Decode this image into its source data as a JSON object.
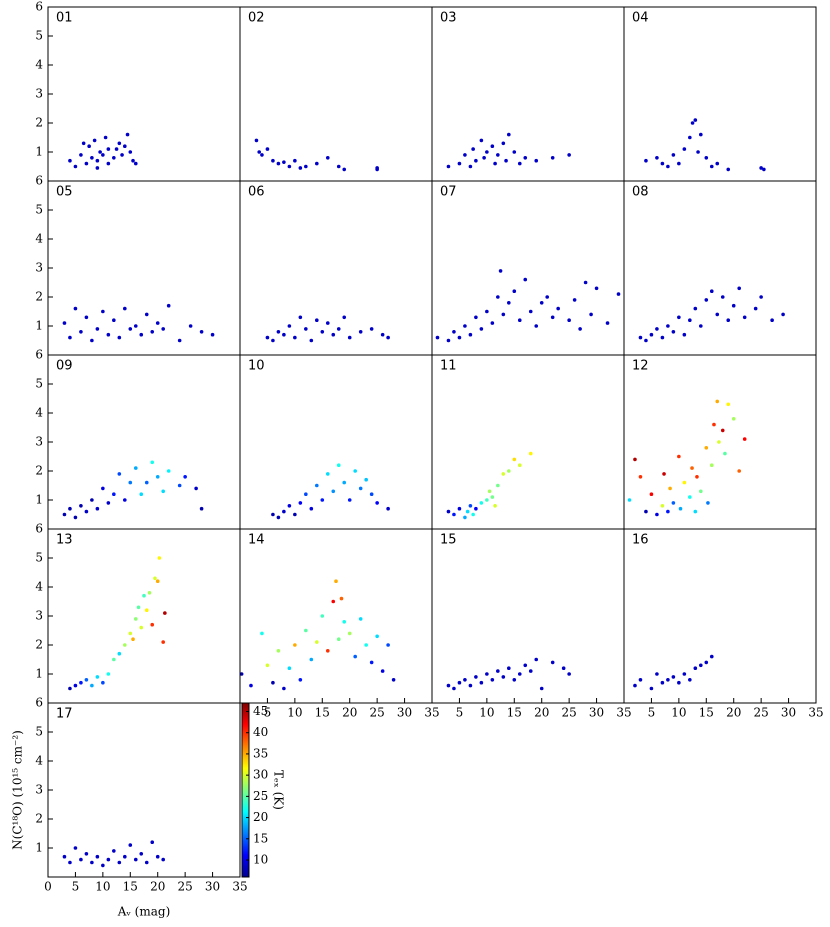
{
  "xlabel": "Aᵥ (mag)",
  "ylabel": "N(C¹⁸O) (10¹⁵ cm⁻²)",
  "colorbar": {
    "label": "Tₑₓ (K)",
    "lim": [
      6,
      47
    ],
    "ticks": [
      10,
      15,
      20,
      25,
      30,
      35,
      40,
      45
    ]
  },
  "chart_data": [
    {
      "type": "scatter",
      "title": "01",
      "xlim": [
        0,
        35
      ],
      "ylim": [
        0,
        6
      ],
      "yticks": [
        1,
        2,
        3,
        4,
        5,
        6
      ],
      "color": "#0000c8",
      "x": [
        4,
        5,
        6,
        7,
        7.5,
        8,
        8.5,
        9,
        9.5,
        10,
        10.5,
        11,
        12,
        12.5,
        13,
        13.5,
        14,
        14.5,
        15,
        15.5,
        16,
        6.5,
        9,
        11
      ],
      "y": [
        0.7,
        0.5,
        0.9,
        0.6,
        1.2,
        0.8,
        1.4,
        0.7,
        1.0,
        0.9,
        1.5,
        0.6,
        0.8,
        1.1,
        1.3,
        0.9,
        1.2,
        1.6,
        1.0,
        0.7,
        0.6,
        1.3,
        0.45,
        1.1
      ]
    },
    {
      "type": "scatter",
      "title": "02",
      "xlim": [
        0,
        35
      ],
      "ylim": [
        0,
        6
      ],
      "color": "#0000c8",
      "x": [
        3,
        3.5,
        4,
        5,
        6,
        7,
        8,
        9,
        10,
        11,
        12,
        14,
        16,
        18,
        19,
        25,
        25
      ],
      "y": [
        1.4,
        1.0,
        0.9,
        1.1,
        0.7,
        0.6,
        0.65,
        0.5,
        0.7,
        0.45,
        0.5,
        0.6,
        0.8,
        0.5,
        0.4,
        0.45,
        0.4
      ]
    },
    {
      "type": "scatter",
      "title": "03",
      "xlim": [
        0,
        35
      ],
      "ylim": [
        0,
        6
      ],
      "color": "#0000c8",
      "x": [
        3,
        5,
        6,
        7,
        7.5,
        8,
        9,
        9.5,
        10,
        11,
        11.5,
        12,
        13,
        13.5,
        14,
        15,
        16,
        17,
        19,
        22,
        25
      ],
      "y": [
        0.5,
        0.6,
        0.9,
        0.5,
        1.1,
        0.7,
        1.4,
        0.8,
        1.0,
        1.2,
        0.6,
        0.9,
        1.3,
        0.7,
        1.6,
        1.0,
        0.6,
        0.8,
        0.7,
        0.8,
        0.9
      ]
    },
    {
      "type": "scatter",
      "title": "04",
      "xlim": [
        0,
        35
      ],
      "ylim": [
        0,
        6
      ],
      "color": "#0000c8",
      "x": [
        4,
        6,
        7,
        8,
        9,
        10,
        11,
        12,
        12.5,
        13,
        13.5,
        14,
        15,
        16,
        17,
        19,
        25,
        25.5
      ],
      "y": [
        0.7,
        0.8,
        0.6,
        0.5,
        0.9,
        0.6,
        1.1,
        1.5,
        2.0,
        2.1,
        1.0,
        1.6,
        0.8,
        0.5,
        0.6,
        0.4,
        0.45,
        0.4
      ]
    },
    {
      "type": "scatter",
      "title": "05",
      "xlim": [
        0,
        35
      ],
      "ylim": [
        0,
        6
      ],
      "yticks": [
        1,
        2,
        3,
        4,
        5,
        6
      ],
      "color": "#0000c8",
      "x": [
        3,
        4,
        5,
        6,
        7,
        8,
        9,
        10,
        11,
        12,
        13,
        14,
        15,
        16,
        17,
        18,
        19,
        20,
        21,
        22,
        24,
        26,
        28,
        30
      ],
      "y": [
        1.1,
        0.6,
        1.6,
        0.8,
        1.3,
        0.5,
        0.9,
        1.5,
        0.7,
        1.2,
        0.6,
        1.6,
        0.9,
        1.0,
        0.7,
        1.4,
        0.8,
        1.1,
        0.9,
        1.7,
        0.5,
        1.0,
        0.8,
        0.7
      ]
    },
    {
      "type": "scatter",
      "title": "06",
      "xlim": [
        0,
        35
      ],
      "ylim": [
        0,
        6
      ],
      "color": "#0000c8",
      "x": [
        5,
        6,
        7,
        8,
        9,
        10,
        11,
        12,
        13,
        14,
        15,
        16,
        17,
        18,
        19,
        20,
        22,
        24,
        26,
        27
      ],
      "y": [
        0.6,
        0.5,
        0.8,
        0.7,
        1.0,
        0.6,
        1.3,
        0.9,
        0.5,
        1.2,
        0.8,
        1.1,
        0.7,
        0.9,
        1.3,
        0.6,
        0.8,
        0.9,
        0.7,
        0.6
      ]
    },
    {
      "type": "scatter",
      "title": "07",
      "xlim": [
        0,
        35
      ],
      "ylim": [
        0,
        6
      ],
      "color": "#0000c8",
      "x": [
        1,
        3,
        4,
        5,
        6,
        7,
        8,
        9,
        10,
        11,
        12,
        12.5,
        13,
        14,
        15,
        16,
        17,
        18,
        19,
        20,
        21,
        22,
        23,
        25,
        26,
        27,
        28,
        29,
        30,
        32,
        34
      ],
      "y": [
        0.6,
        0.5,
        0.8,
        0.6,
        1.0,
        0.7,
        1.3,
        0.9,
        1.5,
        1.1,
        2.0,
        2.9,
        1.4,
        1.8,
        2.2,
        1.2,
        2.6,
        1.5,
        1.0,
        1.8,
        2.0,
        1.3,
        1.6,
        1.2,
        1.9,
        0.9,
        2.5,
        1.4,
        2.3,
        1.1,
        2.1
      ]
    },
    {
      "type": "scatter",
      "title": "08",
      "xlim": [
        0,
        35
      ],
      "ylim": [
        0,
        6
      ],
      "color": "#0000c8",
      "x": [
        3,
        4,
        5,
        6,
        7,
        8,
        9,
        10,
        11,
        12,
        13,
        14,
        15,
        16,
        17,
        18,
        19,
        20,
        21,
        22,
        24,
        25,
        27,
        29
      ],
      "y": [
        0.6,
        0.5,
        0.7,
        0.9,
        0.6,
        1.0,
        0.8,
        1.3,
        0.7,
        1.2,
        1.6,
        1.0,
        1.9,
        2.2,
        1.4,
        2.0,
        1.2,
        1.7,
        2.3,
        1.3,
        1.6,
        2.0,
        1.2,
        1.4
      ]
    },
    {
      "type": "scatter",
      "title": "09",
      "xlim": [
        0,
        35
      ],
      "ylim": [
        0,
        6
      ],
      "yticks": [
        1,
        2,
        3,
        4,
        5,
        6
      ],
      "x": [
        3,
        4,
        5,
        6,
        7,
        8,
        9,
        10,
        11,
        12,
        13,
        14,
        15,
        16,
        17,
        18,
        19,
        20,
        21,
        22,
        24,
        25,
        27,
        28
      ],
      "y": [
        0.5,
        0.7,
        0.4,
        0.8,
        0.6,
        1.0,
        0.7,
        1.4,
        0.9,
        1.2,
        1.9,
        1.0,
        1.6,
        2.1,
        1.2,
        1.6,
        2.3,
        1.8,
        1.3,
        2.0,
        1.5,
        1.8,
        1.4,
        0.7
      ],
      "c": [
        8,
        8,
        8,
        8,
        9,
        8,
        9,
        10,
        9,
        12,
        14,
        10,
        16,
        18,
        20,
        15,
        22,
        18,
        20,
        21,
        14,
        12,
        9,
        8
      ]
    },
    {
      "type": "scatter",
      "title": "10",
      "xlim": [
        0,
        35
      ],
      "ylim": [
        0,
        6
      ],
      "x": [
        6,
        7,
        8,
        9,
        10,
        11,
        12,
        13,
        14,
        15,
        16,
        17,
        18,
        19,
        20,
        21,
        22,
        23,
        24,
        25,
        27
      ],
      "y": [
        0.5,
        0.4,
        0.6,
        0.8,
        0.5,
        0.9,
        1.2,
        0.7,
        1.5,
        1.0,
        1.9,
        1.3,
        2.2,
        1.6,
        1.0,
        2.0,
        1.4,
        1.7,
        1.2,
        0.9,
        0.7
      ],
      "c": [
        8,
        8,
        9,
        10,
        8,
        11,
        14,
        10,
        16,
        12,
        20,
        17,
        22,
        18,
        12,
        20,
        16,
        19,
        14,
        11,
        9
      ]
    },
    {
      "type": "scatter",
      "title": "11",
      "xlim": [
        0,
        35
      ],
      "ylim": [
        0,
        6
      ],
      "x": [
        3,
        4,
        5,
        6,
        6.5,
        7,
        7.5,
        8,
        9,
        10,
        10.5,
        11,
        11.5,
        12,
        13,
        14,
        15,
        16,
        18
      ],
      "y": [
        0.6,
        0.5,
        0.7,
        0.4,
        0.6,
        0.8,
        0.5,
        0.7,
        0.9,
        1.0,
        1.3,
        1.1,
        0.8,
        1.5,
        1.9,
        2.0,
        2.4,
        2.2,
        2.6
      ],
      "c": [
        9,
        12,
        10,
        18,
        20,
        14,
        22,
        11,
        22,
        24,
        28,
        26,
        30,
        26,
        30,
        28,
        33,
        30,
        32
      ]
    },
    {
      "type": "scatter",
      "title": "12",
      "xlim": [
        0,
        35
      ],
      "ylim": [
        0,
        6
      ],
      "x": [
        1,
        2,
        3,
        4,
        5,
        6,
        7,
        7.3,
        8,
        8.4,
        9,
        10,
        10.3,
        11,
        12,
        12.4,
        13,
        13.3,
        14,
        15,
        15.3,
        16,
        16.4,
        17,
        17.3,
        18,
        18.4,
        19,
        20,
        21,
        22
      ],
      "y": [
        1.0,
        2.4,
        1.8,
        0.6,
        1.2,
        0.5,
        0.8,
        1.9,
        0.6,
        1.4,
        0.9,
        2.5,
        0.7,
        1.6,
        1.1,
        2.1,
        0.6,
        1.8,
        1.3,
        2.8,
        0.9,
        2.2,
        3.6,
        4.4,
        3.0,
        3.4,
        2.6,
        4.3,
        3.8,
        2.0,
        3.1
      ],
      "c": [
        20,
        45,
        40,
        8,
        42,
        10,
        30,
        44,
        12,
        35,
        15,
        40,
        18,
        32,
        22,
        38,
        20,
        40,
        26,
        35,
        16,
        28,
        40,
        35,
        30,
        44,
        25,
        32,
        28,
        38,
        42
      ]
    },
    {
      "type": "scatter",
      "title": "13",
      "xlim": [
        0,
        35
      ],
      "ylim": [
        0,
        6
      ],
      "yticks": [
        1,
        2,
        3,
        4,
        5,
        6
      ],
      "x": [
        4,
        5,
        6,
        7,
        8,
        9,
        10,
        11,
        12,
        13,
        14,
        15,
        15.5,
        16,
        16.5,
        17,
        17.5,
        18,
        18.5,
        19,
        19.5,
        20,
        20.3,
        21,
        21.3
      ],
      "y": [
        0.5,
        0.6,
        0.7,
        0.8,
        0.6,
        0.9,
        0.7,
        1.0,
        1.5,
        1.7,
        2.0,
        2.4,
        2.2,
        2.9,
        3.3,
        2.6,
        3.7,
        3.2,
        3.8,
        2.7,
        4.3,
        4.2,
        5.0,
        2.1,
        3.1
      ],
      "c": [
        8,
        10,
        12,
        15,
        18,
        20,
        14,
        22,
        25,
        20,
        28,
        30,
        35,
        27,
        25,
        30,
        24,
        32,
        28,
        40,
        30,
        35,
        32,
        40,
        45
      ]
    },
    {
      "type": "scatter",
      "title": "14",
      "xlim": [
        0,
        35
      ],
      "ylim": [
        0,
        6
      ],
      "xticks": [
        5,
        10,
        15,
        20,
        25,
        30,
        35
      ],
      "x": [
        0.3,
        2,
        4,
        5,
        6,
        7,
        8,
        9,
        10,
        11,
        12,
        13,
        14,
        15,
        16,
        17,
        17.5,
        18,
        18.5,
        19,
        20,
        21,
        22,
        23,
        24,
        25,
        26,
        27,
        28
      ],
      "y": [
        1.0,
        0.6,
        2.4,
        1.3,
        0.7,
        1.8,
        0.5,
        1.2,
        2.0,
        0.8,
        2.5,
        1.5,
        2.1,
        3.0,
        1.8,
        3.5,
        4.2,
        2.2,
        3.6,
        2.8,
        2.4,
        1.6,
        2.9,
        2.0,
        1.4,
        2.3,
        1.1,
        2.0,
        0.8
      ],
      "c": [
        8,
        10,
        22,
        30,
        8,
        28,
        9,
        20,
        35,
        12,
        25,
        18,
        30,
        24,
        40,
        42,
        35,
        26,
        38,
        22,
        28,
        15,
        20,
        22,
        12,
        20,
        10,
        14,
        9
      ]
    },
    {
      "type": "scatter",
      "title": "15",
      "xlim": [
        0,
        35
      ],
      "ylim": [
        0,
        6
      ],
      "xticks": [
        5,
        10,
        15,
        20,
        25,
        30,
        35
      ],
      "color": "#0000c8",
      "x": [
        3,
        4,
        5,
        6,
        7,
        8,
        9,
        10,
        11,
        12,
        13,
        14,
        15,
        16,
        17,
        18,
        19,
        20,
        22,
        24,
        25
      ],
      "y": [
        0.6,
        0.5,
        0.7,
        0.8,
        0.6,
        0.9,
        0.7,
        1.0,
        0.8,
        1.1,
        0.9,
        1.2,
        0.8,
        1.0,
        1.3,
        1.1,
        1.5,
        0.5,
        1.4,
        1.2,
        1.0
      ]
    },
    {
      "type": "scatter",
      "title": "16",
      "xlim": [
        0,
        35
      ],
      "ylim": [
        0,
        6
      ],
      "xticks": [
        5,
        10,
        15,
        20,
        25,
        30,
        35
      ],
      "color": "#0000c8",
      "x": [
        2,
        3,
        5,
        6,
        7,
        8,
        9,
        10,
        11,
        12,
        13,
        14,
        15,
        16
      ],
      "y": [
        0.6,
        0.8,
        0.5,
        1.0,
        0.7,
        0.8,
        0.9,
        0.7,
        1.0,
        0.8,
        1.2,
        1.3,
        1.4,
        1.6
      ]
    },
    {
      "type": "scatter",
      "title": "17",
      "xlim": [
        0,
        35
      ],
      "ylim": [
        0,
        6
      ],
      "xticks": [
        0,
        5,
        10,
        15,
        20,
        25,
        30,
        35
      ],
      "yticks": [
        1,
        2,
        3,
        4,
        5,
        6
      ],
      "color": "#0000c8",
      "x": [
        3,
        4,
        5,
        6,
        7,
        8,
        9,
        10,
        11,
        12,
        13,
        14,
        15,
        16,
        17,
        18,
        19,
        20,
        21
      ],
      "y": [
        0.7,
        0.5,
        1.0,
        0.6,
        0.8,
        0.5,
        0.7,
        0.4,
        0.6,
        0.9,
        0.5,
        0.7,
        1.1,
        0.6,
        0.8,
        0.5,
        1.2,
        0.7,
        0.6
      ]
    }
  ]
}
